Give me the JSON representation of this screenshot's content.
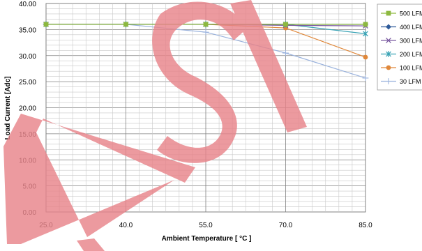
{
  "chart_data": {
    "type": "line",
    "title": "",
    "xlabel": "Ambient Temperature [ °C ]",
    "ylabel": "Load Current [Adc]",
    "xlim": [
      25,
      85
    ],
    "ylim": [
      0,
      40
    ],
    "x_ticks": [
      "25.0",
      "40.0",
      "55.0",
      "70.0",
      "85.0"
    ],
    "y_ticks": [
      "0.00",
      "5.00",
      "10.00",
      "15.00",
      "20.00",
      "25.00",
      "30.00",
      "35.00",
      "40.00"
    ],
    "grid": true,
    "legend_position": "right",
    "x": [
      25,
      40,
      55,
      70,
      85
    ],
    "series": [
      {
        "name": "500 LFM",
        "values": [
          36,
          36,
          36,
          36,
          36
        ],
        "color": "#8db93f",
        "marker": "square"
      },
      {
        "name": "400 LFM",
        "values": [
          36,
          36,
          36,
          36,
          36
        ],
        "color": "#2e5b9a",
        "marker": "diamond"
      },
      {
        "name": "300 LFM",
        "values": [
          36,
          36,
          36,
          35.8,
          35.7
        ],
        "color": "#7a5aa0",
        "marker": "x"
      },
      {
        "name": "200 LFM",
        "values": [
          36,
          36,
          36,
          36,
          34.2
        ],
        "color": "#3aa3b5",
        "marker": "asterisk"
      },
      {
        "name": "100 LFM",
        "values": [
          36,
          36,
          36,
          35.3,
          29.7
        ],
        "color": "#e0883a",
        "marker": "circle"
      },
      {
        "name": "30 LFM",
        "values": [
          36,
          36,
          34.5,
          30.5,
          25.7
        ],
        "color": "#9bb3dd",
        "marker": "plus"
      }
    ],
    "watermark_text": "ASI",
    "watermark_color": "#e8848a"
  }
}
